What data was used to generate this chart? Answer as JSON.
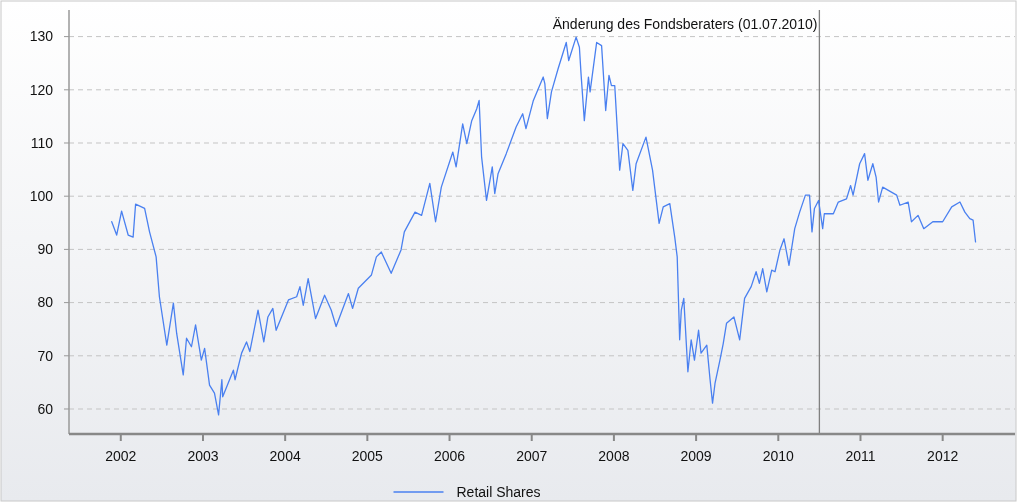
{
  "chart_data": {
    "type": "line",
    "x": [
      2001.89,
      2001.95,
      2002.01,
      2002.09,
      2002.15,
      2002.18,
      2002.29,
      2002.35,
      2002.43,
      2002.47,
      2002.56,
      2002.64,
      2002.68,
      2002.76,
      2002.8,
      2002.86,
      2002.91,
      2002.98,
      2003.02,
      2003.08,
      2003.14,
      2003.19,
      2003.23,
      2003.24,
      2003.37,
      2003.39,
      2003.47,
      2003.53,
      2003.57,
      2003.67,
      2003.74,
      2003.79,
      2003.85,
      2003.89,
      2004.04,
      2004.14,
      2004.18,
      2004.22,
      2004.28,
      2004.37,
      2004.48,
      2004.56,
      2004.62,
      2004.77,
      2004.82,
      2004.89,
      2005.05,
      2005.11,
      2005.17,
      2005.29,
      2005.41,
      2005.45,
      2005.58,
      2005.66,
      2005.76,
      2005.83,
      2005.9,
      2006.04,
      2006.08,
      2006.16,
      2006.21,
      2006.27,
      2006.33,
      2006.36,
      2006.39,
      2006.45,
      2006.52,
      2006.55,
      2006.59,
      2006.69,
      2006.81,
      2006.89,
      2006.93,
      2007.02,
      2007.14,
      2007.16,
      2007.19,
      2007.24,
      2007.32,
      2007.42,
      2007.45,
      2007.54,
      2007.58,
      2007.6,
      2007.64,
      2007.69,
      2007.71,
      2007.79,
      2007.85,
      2007.9,
      2007.94,
      2007.97,
      2008.01,
      2008.07,
      2008.11,
      2008.17,
      2008.23,
      2008.27,
      2008.39,
      2008.47,
      2008.55,
      2008.6,
      2008.68,
      2008.74,
      2008.77,
      2008.8,
      2008.82,
      2008.85,
      2008.9,
      2008.94,
      2008.98,
      2009.03,
      2009.06,
      2009.13,
      2009.17,
      2009.2,
      2009.23,
      2009.29,
      2009.33,
      2009.37,
      2009.46,
      2009.53,
      2009.59,
      2009.67,
      2009.73,
      2009.77,
      2009.81,
      2009.86,
      2009.92,
      2009.96,
      2010.02,
      2010.07,
      2010.13,
      2010.2,
      2010.26,
      2010.33,
      2010.38,
      2010.41,
      2010.44,
      2010.49,
      2010.54,
      2010.56,
      2010.67,
      2010.73,
      2010.83,
      2010.88,
      2010.91,
      2010.99,
      2011.05,
      2011.09,
      2011.15,
      2011.19,
      2011.22,
      2011.27,
      2011.44,
      2011.48,
      2011.58,
      2011.62,
      2011.7,
      2011.77,
      2011.88,
      2012.0,
      2012.11,
      2012.21,
      2012.27,
      2012.33,
      2012.37,
      2012.4
    ],
    "series": [
      {
        "name": "Retail Shares",
        "color": "#4a80f0",
        "values": [
          95.2,
          92.7,
          97.2,
          92.7,
          92.3,
          98.5,
          97.7,
          93.3,
          88.6,
          81.1,
          72.0,
          79.9,
          74.2,
          66.4,
          73.3,
          71.7,
          75.8,
          69.2,
          71.4,
          64.5,
          63.0,
          58.9,
          65.5,
          62.3,
          67.3,
          65.5,
          70.5,
          72.6,
          70.8,
          78.6,
          72.6,
          77.3,
          78.9,
          74.8,
          80.5,
          81.1,
          83.0,
          79.5,
          84.5,
          77.0,
          81.4,
          78.6,
          75.5,
          81.7,
          78.9,
          82.7,
          85.2,
          88.6,
          89.5,
          85.5,
          89.9,
          93.3,
          97.0,
          96.4,
          102.4,
          95.2,
          101.7,
          108.3,
          105.5,
          113.6,
          109.9,
          114.2,
          116.4,
          118.0,
          107.4,
          99.2,
          105.5,
          100.5,
          104.2,
          108.0,
          113.0,
          115.5,
          112.7,
          118.0,
          122.4,
          121.1,
          114.6,
          119.6,
          123.9,
          128.9,
          125.5,
          129.9,
          128.0,
          123.0,
          114.2,
          122.4,
          119.6,
          128.9,
          128.3,
          116.1,
          122.7,
          120.8,
          120.8,
          104.9,
          109.9,
          108.6,
          101.1,
          106.1,
          111.1,
          104.9,
          94.9,
          98.0,
          98.6,
          92.3,
          88.6,
          73.0,
          78.6,
          80.8,
          67.0,
          73.0,
          69.2,
          74.8,
          70.5,
          72.0,
          65.5,
          61.1,
          64.8,
          69.2,
          72.3,
          76.1,
          77.3,
          73.0,
          80.8,
          83.0,
          85.8,
          83.6,
          86.4,
          82.0,
          86.1,
          85.8,
          89.9,
          92.0,
          87.0,
          93.9,
          97.0,
          100.2,
          100.2,
          93.3,
          97.7,
          99.2,
          93.9,
          96.7,
          96.7,
          98.9,
          99.5,
          102.0,
          100.2,
          106.1,
          108.0,
          103.0,
          106.1,
          103.6,
          98.9,
          101.7,
          100.2,
          98.3,
          98.9,
          95.2,
          96.4,
          93.9,
          95.2,
          95.2,
          98.0,
          98.9,
          97.0,
          95.8,
          95.5,
          91.4
        ]
      }
    ],
    "xlim": [
      2001.37,
      2012.88
    ],
    "xticks": [
      2002,
      2003,
      2004,
      2005,
      2006,
      2007,
      2008,
      2009,
      2010,
      2011,
      2012
    ],
    "ylim": [
      55.3,
      135
    ],
    "yticks": [
      60,
      70,
      80,
      90,
      100,
      110,
      120,
      130
    ],
    "grid": "y",
    "legend": "bottom",
    "ref_lines": [
      {
        "axis": "x",
        "value": 2010.5,
        "label": "Änderung des Fondsberaters (01.07.2010)",
        "color": "#808080"
      }
    ]
  }
}
